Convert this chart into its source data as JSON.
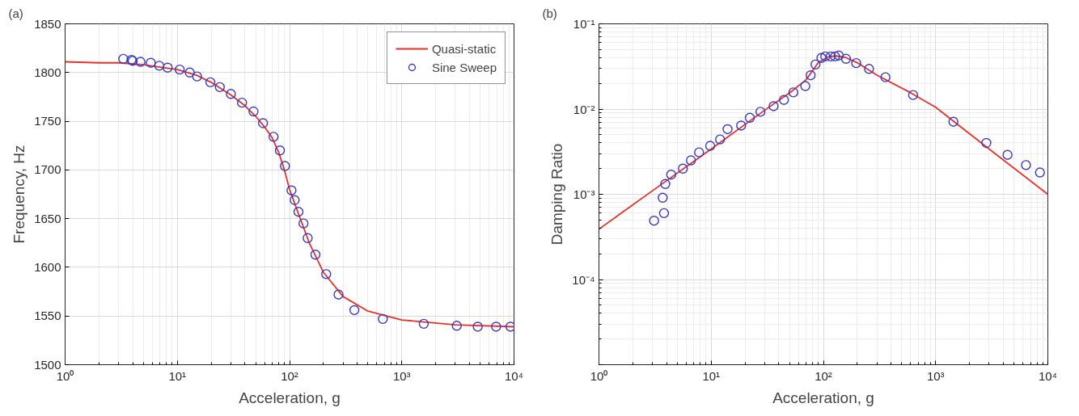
{
  "chart_data": [
    {
      "type": "line",
      "annotations": [
        "(a)"
      ],
      "xlabel": "Acceleration, g",
      "ylabel": "Frequency, Hz",
      "log": "x",
      "grid": true,
      "legend": "top right",
      "xlim": [
        1,
        10000
      ],
      "xticks": [
        {
          "value": 1,
          "label": "10⁰"
        },
        {
          "value": 10,
          "label": "10¹"
        },
        {
          "value": 100,
          "label": "10²"
        },
        {
          "value": 1000,
          "label": "10³"
        },
        {
          "value": 10000,
          "label": "10⁴"
        }
      ],
      "ylim": [
        1500,
        1850
      ],
      "yticks": [
        1500,
        1550,
        1600,
        1650,
        1700,
        1750,
        1800,
        1850
      ],
      "series": [
        {
          "name": "Quasi-static",
          "color": "#e8302a",
          "marker": "none",
          "x": [
            1,
            2,
            3,
            5,
            10,
            15,
            20,
            30,
            40,
            50,
            60,
            70,
            80,
            90,
            100,
            110,
            120,
            150,
            200,
            300,
            500,
            1000,
            3000,
            10000
          ],
          "values": [
            1811,
            1810,
            1810,
            1808,
            1803,
            1797,
            1790,
            1777,
            1766,
            1755,
            1744,
            1733,
            1718,
            1700,
            1680,
            1667,
            1655,
            1625,
            1595,
            1570,
            1555,
            1546,
            1541,
            1539
          ]
        },
        {
          "name": "Sine Sweep",
          "type": "scatter",
          "color": "#3a3abf",
          "marker": "circle",
          "x": [
            3.3,
            3.9,
            4.0,
            4.7,
            5.8,
            6.9,
            8.2,
            10.5,
            12.9,
            15,
            19.7,
            23.9,
            30,
            37.7,
            47.7,
            58,
            72,
            82,
            91,
            104,
            111,
            120,
            133,
            145,
            170,
            212,
            273,
            378,
            678,
            1570,
            3090,
            4750,
            6920,
            9300
          ],
          "values": [
            1814,
            1813,
            1812,
            1811,
            1810,
            1807,
            1805,
            1803,
            1800,
            1796,
            1790,
            1785,
            1778,
            1769,
            1760,
            1748,
            1734,
            1720,
            1704,
            1679,
            1669,
            1657,
            1645,
            1630,
            1613,
            1593,
            1572,
            1556,
            1547,
            1542,
            1540,
            1539,
            1539,
            1539
          ]
        }
      ]
    },
    {
      "type": "line",
      "annotations": [
        "(b)"
      ],
      "xlabel": "Acceleration, g",
      "ylabel": "Damping Ratio",
      "log": "xy",
      "grid": true,
      "xlim": [
        1,
        10000
      ],
      "xticks": [
        {
          "value": 1,
          "label": "10⁰"
        },
        {
          "value": 10,
          "label": "10¹"
        },
        {
          "value": 100,
          "label": "10²"
        },
        {
          "value": 1000,
          "label": "10³"
        },
        {
          "value": 10000,
          "label": "10⁴"
        }
      ],
      "ylim": [
        1e-05,
        0.1
      ],
      "yticks": [
        {
          "value": 1e-05,
          "label": null
        },
        {
          "value": 0.0001,
          "label": "10⁻⁴"
        },
        {
          "value": 0.001,
          "label": "10⁻³"
        },
        {
          "value": 0.01,
          "label": "10⁻²"
        },
        {
          "value": 0.1,
          "label": "10⁻¹"
        }
      ],
      "series": [
        {
          "color": "#e8302a",
          "marker": "none",
          "x": [
            1,
            3,
            10,
            30,
            50,
            70,
            90,
            110,
            130,
            160,
            200,
            300,
            600,
            1000,
            3000,
            10000
          ],
          "values": [
            0.00039,
            0.0011,
            0.0034,
            0.0097,
            0.0155,
            0.022,
            0.035,
            0.041,
            0.042,
            0.04,
            0.035,
            0.025,
            0.0155,
            0.0105,
            0.0034,
            0.001
          ]
        },
        {
          "type": "scatter",
          "color": "#3a3abf",
          "marker": "circle",
          "x": [
            3.1,
            3.8,
            3.7,
            3.9,
            4.4,
            5.6,
            6.6,
            7.8,
            9.8,
            12,
            14,
            18.5,
            22.1,
            27.5,
            36,
            44.5,
            54,
            69,
            77,
            85,
            96,
            104,
            116,
            127,
            137,
            159,
            196,
            255,
            357,
            630,
            1440,
            2830,
            4370,
            6380,
            8500
          ],
          "values": [
            0.00049,
            0.0006,
            0.00091,
            0.00132,
            0.0017,
            0.002,
            0.0025,
            0.0031,
            0.0037,
            0.0044,
            0.0058,
            0.0064,
            0.0079,
            0.0093,
            0.0108,
            0.0128,
            0.0157,
            0.0186,
            0.0249,
            0.0333,
            0.0398,
            0.0414,
            0.0414,
            0.0414,
            0.0425,
            0.0389,
            0.0346,
            0.0296,
            0.0236,
            0.0146,
            0.0071,
            0.004,
            0.0029,
            0.0022,
            0.0018
          ]
        }
      ]
    }
  ]
}
